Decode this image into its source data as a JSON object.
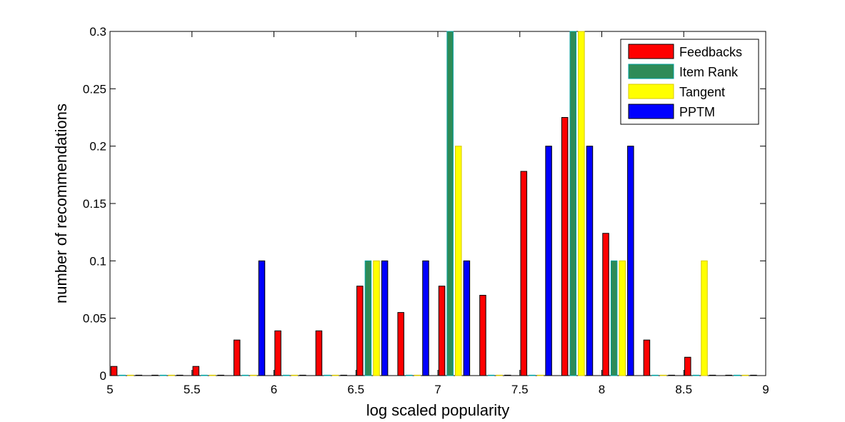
{
  "chart_data": {
    "type": "bar",
    "title": "",
    "xlabel": "log scaled popularity",
    "ylabel": "number of recommendations",
    "xlim": [
      5,
      9
    ],
    "ylim": [
      0,
      0.3
    ],
    "xticks": [
      "5",
      "5.5",
      "6",
      "6.5",
      "7",
      "7.5",
      "8",
      "8.5",
      "9"
    ],
    "yticks": [
      "0",
      "0.05",
      "0.1",
      "0.15",
      "0.2",
      "0.25",
      "0.3"
    ],
    "grid": false,
    "legend_position": "top-right",
    "bin_centers": [
      5.1,
      5.35,
      5.6,
      5.85,
      6.1,
      6.35,
      6.6,
      6.85,
      7.1,
      7.35,
      7.6,
      7.85,
      8.1,
      8.35,
      8.6,
      8.85
    ],
    "series": [
      {
        "name": "Feedbacks",
        "color": "#ff0000",
        "edge": "#000000",
        "values": [
          0.008,
          0,
          0.008,
          0.031,
          0.039,
          0.039,
          0.078,
          0.055,
          0.078,
          0.07,
          0.178,
          0.225,
          0.124,
          0.031,
          0.016,
          0
        ]
      },
      {
        "name": "Item Rank",
        "color": "#2e8b57",
        "edge": "#00a0a0",
        "values": [
          0,
          0,
          0,
          0,
          0,
          0,
          0.1,
          0,
          0.3,
          0,
          0,
          0.3,
          0.1,
          0,
          0,
          0
        ]
      },
      {
        "name": "Tangent",
        "color": "#ffff00",
        "edge": "#d8c800",
        "values": [
          0,
          0,
          0,
          0,
          0,
          0,
          0.1,
          0,
          0.2,
          0,
          0,
          0.3,
          0.1,
          0,
          0.1,
          0
        ]
      },
      {
        "name": "PPTM",
        "color": "#0000ff",
        "edge": "#000000",
        "values": [
          0,
          0,
          0,
          0.1,
          0,
          0,
          0.1,
          0.1,
          0.1,
          0,
          0.2,
          0.2,
          0.2,
          0,
          0,
          0
        ]
      }
    ]
  }
}
